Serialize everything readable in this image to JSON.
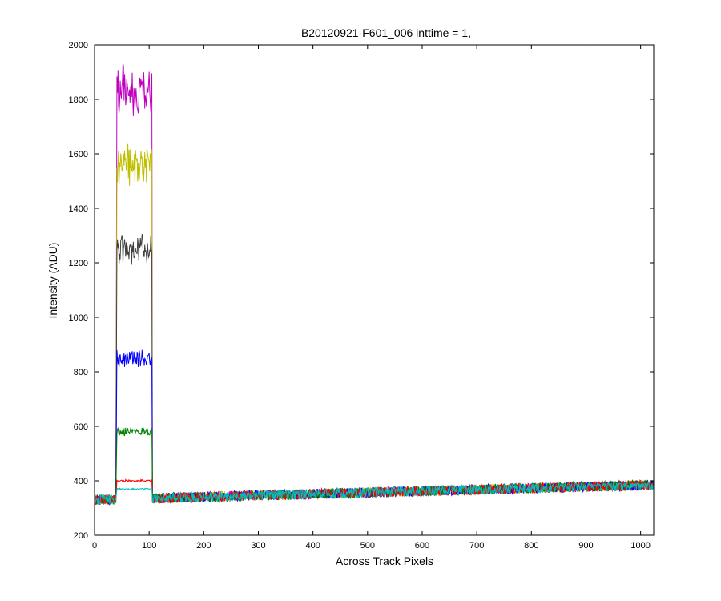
{
  "chart_data": {
    "type": "line",
    "title": "B20120921-F601_006 inttime = 1,",
    "xlabel": "Across Track Pixels",
    "ylabel": "Intensity (ADU)",
    "xlim": [
      0,
      1024
    ],
    "ylim": [
      200,
      2000
    ],
    "xticks": [
      0,
      100,
      200,
      300,
      400,
      500,
      600,
      700,
      800,
      900,
      1000
    ],
    "yticks": [
      200,
      400,
      600,
      800,
      1000,
      1200,
      1400,
      1600,
      1800,
      2000
    ],
    "grid": false,
    "legend": "none",
    "n_points": 1024,
    "series": [
      {
        "color": "#bf00bf",
        "pulse": [
          40,
          105
        ],
        "baseline_at_0": 330,
        "baseline_at_1024": 385,
        "pulse_level": 1830,
        "peak": 1990,
        "x": [
          0,
          45,
          50,
          55,
          60,
          65,
          70,
          75,
          80,
          85,
          90,
          95,
          100,
          105,
          110,
          150,
          250,
          350,
          450,
          550,
          650,
          750,
          850,
          950,
          1023
        ],
        "y": [
          330,
          1730,
          1840,
          1990,
          1850,
          1820,
          1880,
          1800,
          1840,
          1790,
          1900,
          1820,
          1780,
          1800,
          350,
          360,
          360,
          365,
          370,
          372,
          378,
          380,
          382,
          385,
          385
        ]
      },
      {
        "color": "#bfbf00",
        "pulse": [
          40,
          105
        ],
        "baseline_at_0": 330,
        "baseline_at_1024": 385,
        "pulse_level": 1560,
        "peak": 1660,
        "x": [
          0,
          45,
          50,
          55,
          60,
          65,
          70,
          75,
          80,
          85,
          90,
          95,
          100,
          105,
          110,
          150,
          250,
          350,
          450,
          550,
          650,
          750,
          850,
          950,
          1023
        ],
        "y": [
          330,
          1480,
          1560,
          1640,
          1570,
          1550,
          1600,
          1530,
          1560,
          1520,
          1620,
          1560,
          1520,
          1540,
          350,
          360,
          360,
          365,
          370,
          372,
          378,
          380,
          382,
          385,
          385
        ]
      },
      {
        "color": "#404040",
        "pulse": [
          40,
          105
        ],
        "baseline_at_0": 330,
        "baseline_at_1024": 385,
        "pulse_level": 1250,
        "peak": 1330,
        "x": [
          0,
          45,
          50,
          55,
          60,
          65,
          70,
          75,
          80,
          85,
          90,
          95,
          100,
          105,
          110,
          150,
          250,
          350,
          450,
          550,
          650,
          750,
          850,
          950,
          1023
        ],
        "y": [
          330,
          1190,
          1240,
          1290,
          1240,
          1230,
          1330,
          1220,
          1250,
          1210,
          1300,
          1250,
          1220,
          1230,
          350,
          360,
          360,
          365,
          370,
          372,
          378,
          380,
          382,
          385,
          385
        ]
      },
      {
        "color": "#0000ff",
        "pulse": [
          40,
          105
        ],
        "baseline_at_0": 330,
        "baseline_at_1024": 385,
        "pulse_level": 850,
        "peak": 900,
        "x": [
          0,
          45,
          50,
          55,
          60,
          65,
          70,
          75,
          80,
          85,
          90,
          95,
          100,
          105,
          110,
          150,
          250,
          350,
          450,
          550,
          650,
          750,
          850,
          950,
          1023
        ],
        "y": [
          330,
          820,
          850,
          880,
          840,
          850,
          870,
          830,
          860,
          840,
          900,
          850,
          830,
          840,
          350,
          360,
          360,
          365,
          370,
          372,
          378,
          380,
          382,
          385,
          385
        ]
      },
      {
        "color": "#008000",
        "pulse": [
          40,
          105
        ],
        "baseline_at_0": 330,
        "baseline_at_1024": 385,
        "pulse_level": 580,
        "peak": 620,
        "x": [
          0,
          45,
          50,
          55,
          60,
          65,
          70,
          75,
          80,
          85,
          90,
          95,
          100,
          105,
          110,
          150,
          250,
          350,
          450,
          550,
          650,
          750,
          850,
          950,
          1023
        ],
        "y": [
          330,
          555,
          575,
          600,
          570,
          620,
          580,
          565,
          590,
          570,
          600,
          580,
          560,
          570,
          350,
          360,
          360,
          365,
          370,
          372,
          378,
          380,
          382,
          385,
          385
        ]
      },
      {
        "color": "#ff0000",
        "pulse": [
          40,
          105
        ],
        "baseline_at_0": 330,
        "baseline_at_1024": 385,
        "pulse_level": 400,
        "peak": 430,
        "x": [
          0,
          45,
          50,
          55,
          60,
          65,
          70,
          75,
          80,
          85,
          90,
          95,
          100,
          105,
          110,
          150,
          250,
          350,
          450,
          550,
          650,
          750,
          850,
          950,
          1023
        ],
        "y": [
          330,
          390,
          400,
          410,
          395,
          405,
          400,
          390,
          410,
          400,
          430,
          400,
          395,
          400,
          350,
          360,
          360,
          365,
          370,
          372,
          378,
          380,
          382,
          385,
          385
        ]
      },
      {
        "color": "#00bfbf",
        "pulse": [
          40,
          105
        ],
        "baseline_at_0": 330,
        "baseline_at_1024": 385,
        "pulse_level": 370,
        "peak": 390,
        "x": [
          0,
          45,
          50,
          55,
          60,
          65,
          70,
          75,
          80,
          85,
          90,
          95,
          100,
          105,
          110,
          150,
          250,
          350,
          450,
          550,
          650,
          750,
          850,
          950,
          1023
        ],
        "y": [
          330,
          360,
          370,
          375,
          365,
          372,
          370,
          365,
          378,
          370,
          390,
          372,
          365,
          370,
          350,
          360,
          360,
          365,
          370,
          372,
          378,
          380,
          382,
          385,
          385
        ]
      }
    ]
  }
}
